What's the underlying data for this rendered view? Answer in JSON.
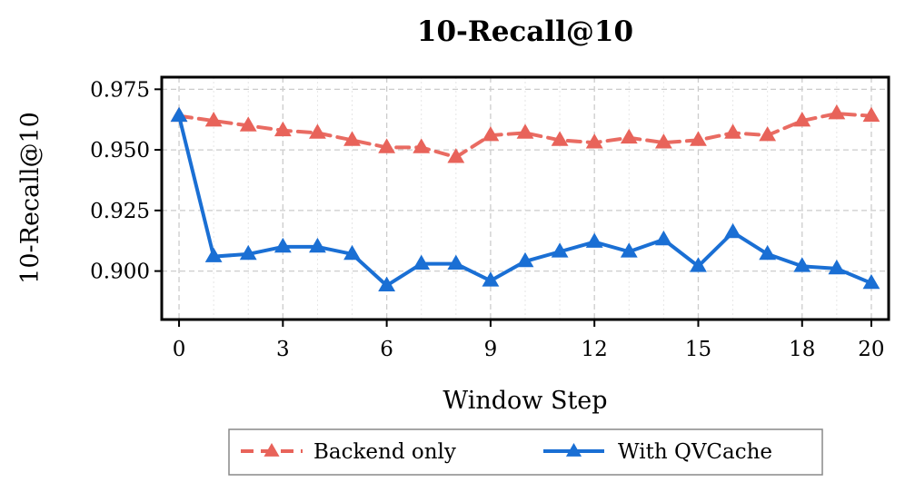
{
  "chart_data": {
    "type": "line",
    "title": "10-Recall@10",
    "xlabel": "Window Step",
    "ylabel": "10-Recall@10",
    "x": [
      0,
      1,
      2,
      3,
      4,
      5,
      6,
      7,
      8,
      9,
      10,
      11,
      12,
      13,
      14,
      15,
      16,
      17,
      18,
      19,
      20
    ],
    "xticks": [
      0,
      3,
      6,
      9,
      12,
      15,
      18,
      20
    ],
    "yticks": [
      0.9,
      0.925,
      0.95,
      0.975
    ],
    "ytick_labels": [
      "0.900",
      "0.925",
      "0.950",
      "0.975"
    ],
    "xlim": [
      -0.5,
      20.5
    ],
    "ylim": [
      0.88,
      0.98
    ],
    "grid": true,
    "legend_position": "bottom-center-outside",
    "series": [
      {
        "name": "Backend only",
        "color": "#e8635a",
        "line_style": "dashed",
        "marker": "triangle",
        "values": [
          0.964,
          0.962,
          0.96,
          0.958,
          0.957,
          0.954,
          0.951,
          0.951,
          0.947,
          0.956,
          0.957,
          0.954,
          0.953,
          0.955,
          0.953,
          0.954,
          0.957,
          0.956,
          0.962,
          0.965,
          0.964
        ]
      },
      {
        "name": "With QVCache",
        "color": "#1a6fd4",
        "line_style": "solid",
        "marker": "triangle",
        "values": [
          0.964,
          0.906,
          0.907,
          0.91,
          0.91,
          0.907,
          0.894,
          0.903,
          0.903,
          0.896,
          0.904,
          0.908,
          0.912,
          0.908,
          0.913,
          0.902,
          0.916,
          0.907,
          0.902,
          0.901,
          0.895
        ]
      }
    ]
  }
}
